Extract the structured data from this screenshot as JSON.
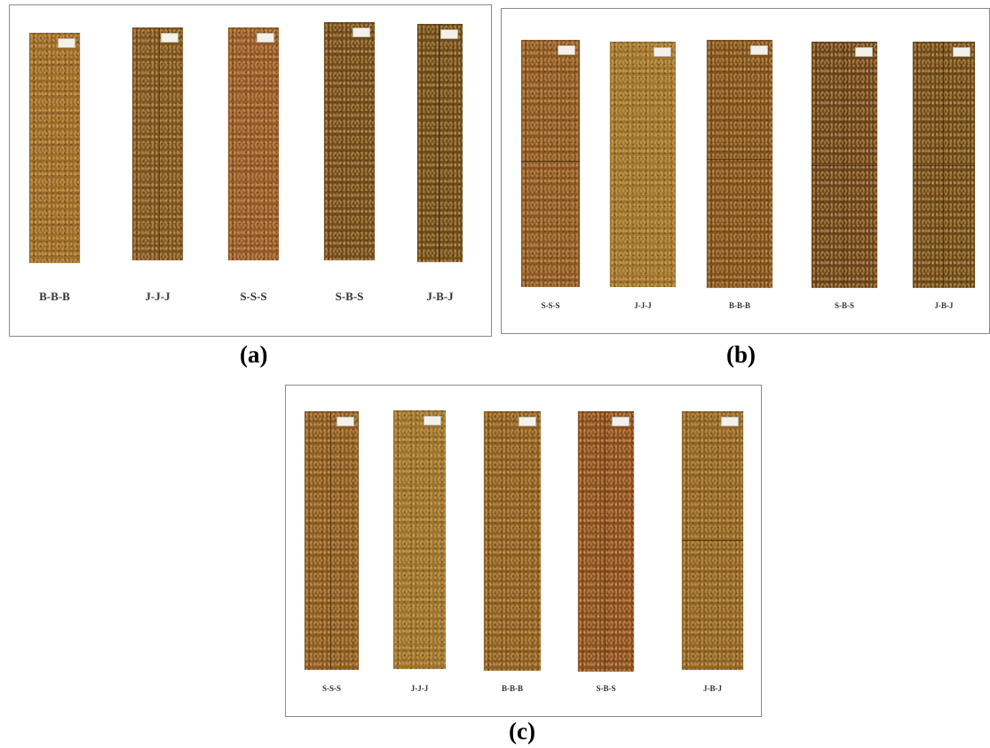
{
  "panels": [
    {
      "caption": "(a)",
      "specimens": [
        {
          "label": "B-B-B",
          "color": "#9a6a2c"
        },
        {
          "label": "J-J-J",
          "color": "#7a5424"
        },
        {
          "label": "S-S-S",
          "color": "#93582c"
        },
        {
          "label": "S-B-S",
          "color": "#6e4a20"
        },
        {
          "label": "J-B-J",
          "color": "#6a4a1e"
        }
      ]
    },
    {
      "caption": "(b)",
      "specimens": [
        {
          "label": "S-S-S",
          "color": "#8c5528"
        },
        {
          "label": "J-J-J",
          "color": "#9c7430"
        },
        {
          "label": "B-B-B",
          "color": "#7e5020"
        },
        {
          "label": "S-B-S",
          "color": "#6a4420"
        },
        {
          "label": "J-B-J",
          "color": "#6c4a1e"
        }
      ]
    },
    {
      "caption": "(c)",
      "specimens": [
        {
          "label": "S-S-S",
          "color": "#8a5a26"
        },
        {
          "label": "J-J-J",
          "color": "#9a7230"
        },
        {
          "label": "B-B-B",
          "color": "#8a5e26"
        },
        {
          "label": "S-B-S",
          "color": "#8a4e24"
        },
        {
          "label": "J-B-J",
          "color": "#8e6428"
        }
      ]
    }
  ]
}
